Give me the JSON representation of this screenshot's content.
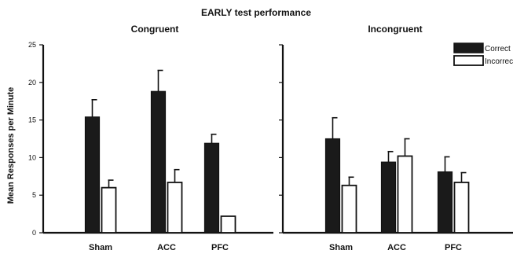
{
  "chart_data": {
    "type": "bar",
    "title": "EARLY test performance",
    "ylabel": "Mean Responses per Minute",
    "ylim": [
      0,
      25
    ],
    "yticks": [
      0,
      5,
      10,
      15,
      20,
      25
    ],
    "categories": [
      "Sham",
      "ACC",
      "PFC"
    ],
    "legend": {
      "position": "top-right",
      "entries": [
        {
          "name": "Correct",
          "color": "#1a1a1a"
        },
        {
          "name": "Incorrect",
          "color": "#ffffff"
        }
      ]
    },
    "panels": [
      {
        "title": "Congruent",
        "series": [
          {
            "name": "Correct",
            "values": [
              15.4,
              18.8,
              11.9
            ],
            "errors": [
              2.3,
              2.8,
              1.2
            ]
          },
          {
            "name": "Incorrect",
            "values": [
              6.0,
              6.7,
              2.2
            ],
            "errors": [
              1.0,
              1.7,
              0.0
            ]
          }
        ]
      },
      {
        "title": "Incongruent",
        "series": [
          {
            "name": "Correct",
            "values": [
              12.5,
              9.4,
              8.1
            ],
            "errors": [
              2.8,
              1.4,
              2.0
            ]
          },
          {
            "name": "Incorrect",
            "values": [
              6.3,
              10.2,
              6.7
            ],
            "errors": [
              1.1,
              2.3,
              1.3
            ]
          }
        ]
      }
    ]
  }
}
